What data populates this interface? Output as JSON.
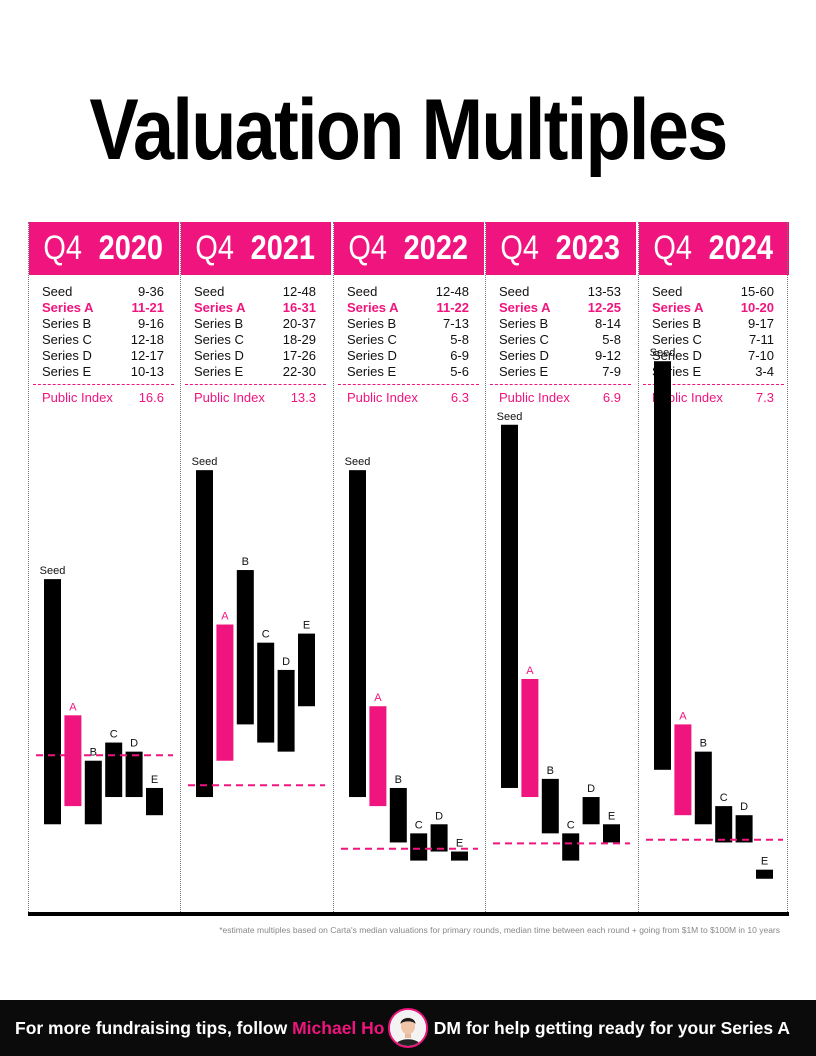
{
  "title": "Valuation Multiples",
  "footnote": "*estimate multiples based on Carta's median valuations for primary rounds, median time between each round + going from $1M to $100M in 10 years",
  "footer": {
    "left_prefix": "For more fundraising tips, follow",
    "left_name": "Michael Ho",
    "right": "DM for help getting ready for your Series A"
  },
  "colors": {
    "accent": "#f0147e",
    "bar": "#000000",
    "background": "#ffffff"
  },
  "columns": [
    {
      "quarter": "Q4",
      "year": "2020",
      "rows": [
        {
          "label": "Seed",
          "value": "9-36",
          "highlight": false
        },
        {
          "label": "Series A",
          "value": "11-21",
          "highlight": true
        },
        {
          "label": "Series B",
          "value": "9-16",
          "highlight": false
        },
        {
          "label": "Series C",
          "value": "12-18",
          "highlight": false
        },
        {
          "label": "Series D",
          "value": "12-17",
          "highlight": false
        },
        {
          "label": "Series E",
          "value": "10-13",
          "highlight": false
        }
      ],
      "public_label": "Public Index",
      "public_value": "16.6"
    },
    {
      "quarter": "Q4",
      "year": "2021",
      "rows": [
        {
          "label": "Seed",
          "value": "12-48",
          "highlight": false
        },
        {
          "label": "Series A",
          "value": "16-31",
          "highlight": true
        },
        {
          "label": "Series B",
          "value": "20-37",
          "highlight": false
        },
        {
          "label": "Series C",
          "value": "18-29",
          "highlight": false
        },
        {
          "label": "Series D",
          "value": "17-26",
          "highlight": false
        },
        {
          "label": "Series E",
          "value": "22-30",
          "highlight": false
        }
      ],
      "public_label": "Public Index",
      "public_value": "13.3"
    },
    {
      "quarter": "Q4",
      "year": "2022",
      "rows": [
        {
          "label": "Seed",
          "value": "12-48",
          "highlight": false
        },
        {
          "label": "Series A",
          "value": "11-22",
          "highlight": true
        },
        {
          "label": "Series B",
          "value": "7-13",
          "highlight": false
        },
        {
          "label": "Series C",
          "value": "5-8",
          "highlight": false
        },
        {
          "label": "Series D",
          "value": "6-9",
          "highlight": false
        },
        {
          "label": "Series E",
          "value": "5-6",
          "highlight": false
        }
      ],
      "public_label": "Public Index",
      "public_value": "6.3"
    },
    {
      "quarter": "Q4",
      "year": "2023",
      "rows": [
        {
          "label": "Seed",
          "value": "13-53",
          "highlight": false
        },
        {
          "label": "Series A",
          "value": "12-25",
          "highlight": true
        },
        {
          "label": "Series B",
          "value": "8-14",
          "highlight": false
        },
        {
          "label": "Series C",
          "value": "5-8",
          "highlight": false
        },
        {
          "label": "Series D",
          "value": "9-12",
          "highlight": false
        },
        {
          "label": "Series E",
          "value": "7-9",
          "highlight": false
        }
      ],
      "public_label": "Public Index",
      "public_value": "6.9"
    },
    {
      "quarter": "Q4",
      "year": "2024",
      "rows": [
        {
          "label": "Seed",
          "value": "15-60",
          "highlight": false
        },
        {
          "label": "Series A",
          "value": "10-20",
          "highlight": true
        },
        {
          "label": "Series B",
          "value": "9-17",
          "highlight": false
        },
        {
          "label": "Series C",
          "value": "7-11",
          "highlight": false
        },
        {
          "label": "Series D",
          "value": "7-10",
          "highlight": false
        },
        {
          "label": "Series E",
          "value": "3-4",
          "highlight": false
        }
      ],
      "public_label": "Public Index",
      "public_value": "7.3"
    }
  ],
  "chart_data": {
    "type": "bar",
    "subtype": "floating-range",
    "title": "Valuation Multiples",
    "categories": [
      "Q4 2020",
      "Q4 2021",
      "Q4 2022",
      "Q4 2023",
      "Q4 2024"
    ],
    "bar_labels": [
      "Seed",
      "A",
      "B",
      "C",
      "D",
      "E"
    ],
    "highlighted_bar": "A",
    "series": [
      {
        "period": "Q4 2020",
        "ranges": [
          [
            9,
            36
          ],
          [
            11,
            21
          ],
          [
            9,
            16
          ],
          [
            12,
            18
          ],
          [
            12,
            17
          ],
          [
            10,
            13
          ]
        ],
        "public_index": 16.6
      },
      {
        "period": "Q4 2021",
        "ranges": [
          [
            12,
            48
          ],
          [
            16,
            31
          ],
          [
            20,
            37
          ],
          [
            18,
            29
          ],
          [
            17,
            26
          ],
          [
            22,
            30
          ]
        ],
        "public_index": 13.3
      },
      {
        "period": "Q4 2022",
        "ranges": [
          [
            12,
            48
          ],
          [
            11,
            22
          ],
          [
            7,
            13
          ],
          [
            5,
            8
          ],
          [
            6,
            9
          ],
          [
            5,
            6
          ]
        ],
        "public_index": 6.3
      },
      {
        "period": "Q4 2023",
        "ranges": [
          [
            13,
            53
          ],
          [
            12,
            25
          ],
          [
            8,
            14
          ],
          [
            5,
            8
          ],
          [
            9,
            12
          ],
          [
            7,
            9
          ]
        ],
        "public_index": 6.9
      },
      {
        "period": "Q4 2024",
        "ranges": [
          [
            15,
            60
          ],
          [
            10,
            20
          ],
          [
            9,
            17
          ],
          [
            7,
            11
          ],
          [
            7,
            10
          ],
          [
            3,
            4
          ]
        ],
        "public_index": 7.3
      }
    ],
    "public_index_line": "dashed",
    "ylim": [
      0,
      60
    ],
    "grid": false
  }
}
